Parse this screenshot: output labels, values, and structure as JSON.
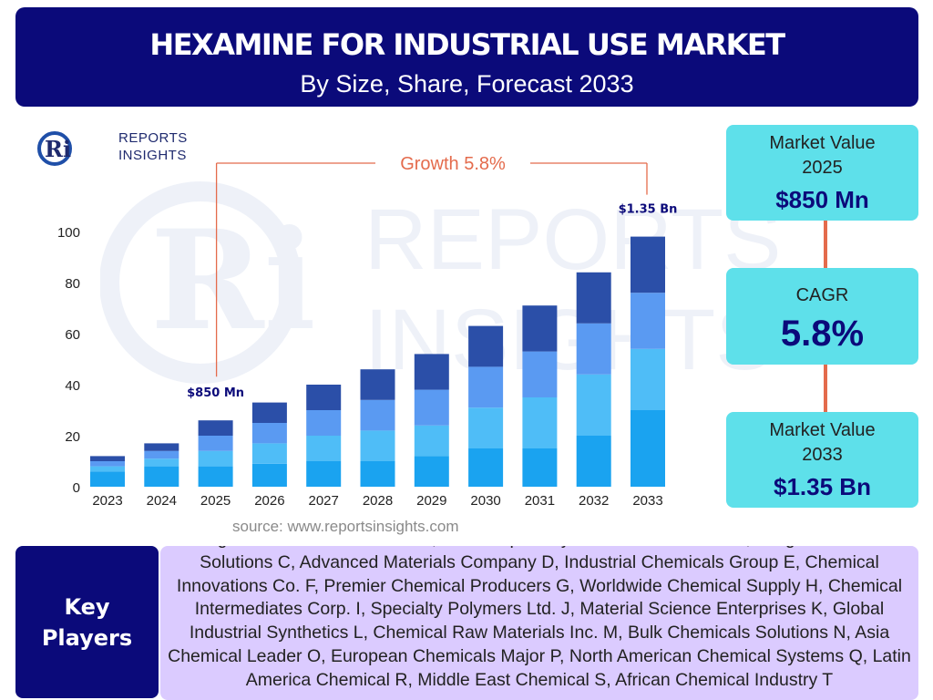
{
  "header": {
    "title": "HEXAMINE FOR INDUSTRIAL USE MARKET",
    "subtitle": "By Size, Share, Forecast 2033",
    "bg_color": "#0b0a7a"
  },
  "logo": {
    "line1": "REPORTS",
    "line2": "INSIGHTS",
    "mark": "Ri"
  },
  "watermark": {
    "mark": "Ri",
    "line1": "REPORTS",
    "line2": "INSIGHTS"
  },
  "chart_data": {
    "type": "bar",
    "stacked": true,
    "categories": [
      "2023",
      "2024",
      "2025",
      "2026",
      "2027",
      "2028",
      "2029",
      "2030",
      "2031",
      "2032",
      "2033"
    ],
    "series": [
      {
        "values": [
          6,
          8,
          8,
          9,
          10,
          10,
          12,
          15,
          15,
          20,
          30
        ],
        "color": "#1aa3f0"
      },
      {
        "values": [
          2,
          3,
          6,
          8,
          10,
          12,
          12,
          16,
          20,
          24,
          24
        ],
        "color": "#4fbdf7"
      },
      {
        "values": [
          2,
          3,
          6,
          8,
          10,
          12,
          14,
          16,
          18,
          20,
          22
        ],
        "color": "#5a9af2"
      },
      {
        "values": [
          2,
          3,
          6,
          8,
          10,
          12,
          14,
          16,
          18,
          20,
          22
        ],
        "color": "#2b4fa8"
      }
    ],
    "ylim": [
      0,
      100
    ],
    "yticks": [
      0,
      20,
      40,
      60,
      80,
      100
    ],
    "grid": false,
    "annotations": [
      {
        "category": "2025",
        "text": "$850 Mn"
      },
      {
        "category": "2033",
        "text": "$1.35 Bn"
      }
    ],
    "growth_label": "Growth   5.8%",
    "growth_color": "#e46b4c",
    "source": "source: www.reportsinsights.com"
  },
  "stats": {
    "value_2025": {
      "label_line1": "Market Value",
      "label_line2": "2025",
      "value": "$850 Mn"
    },
    "cagr": {
      "label": "CAGR",
      "value": "5.8%"
    },
    "value_2033": {
      "label_line1": "Market Value",
      "label_line2": "2033",
      "value": "$1.35 Bn"
    },
    "box_color": "#5ee0ea",
    "connector_color": "#e46b4c"
  },
  "key_players": {
    "label_line1": "Key",
    "label_line2": "Players",
    "list": "Leading Chemical Manufacturer A, Global Specialty Chemicals Provider B, Integrated Chemical Solutions C, Advanced Materials Company D, Industrial Chemicals Group E, Chemical Innovations Co. F, Premier Chemical Producers G, Worldwide Chemical Supply H, Chemical Intermediates Corp. I, Specialty Polymers Ltd. J, Material Science Enterprises K, Global Industrial Synthetics L, Chemical Raw Materials Inc. M, Bulk Chemicals Solutions N, Asia Chemical Leader O, European Chemicals Major P, North American Chemical Systems Q, Latin America Chemical R, Middle East Chemical S, African Chemical Industry T"
  }
}
